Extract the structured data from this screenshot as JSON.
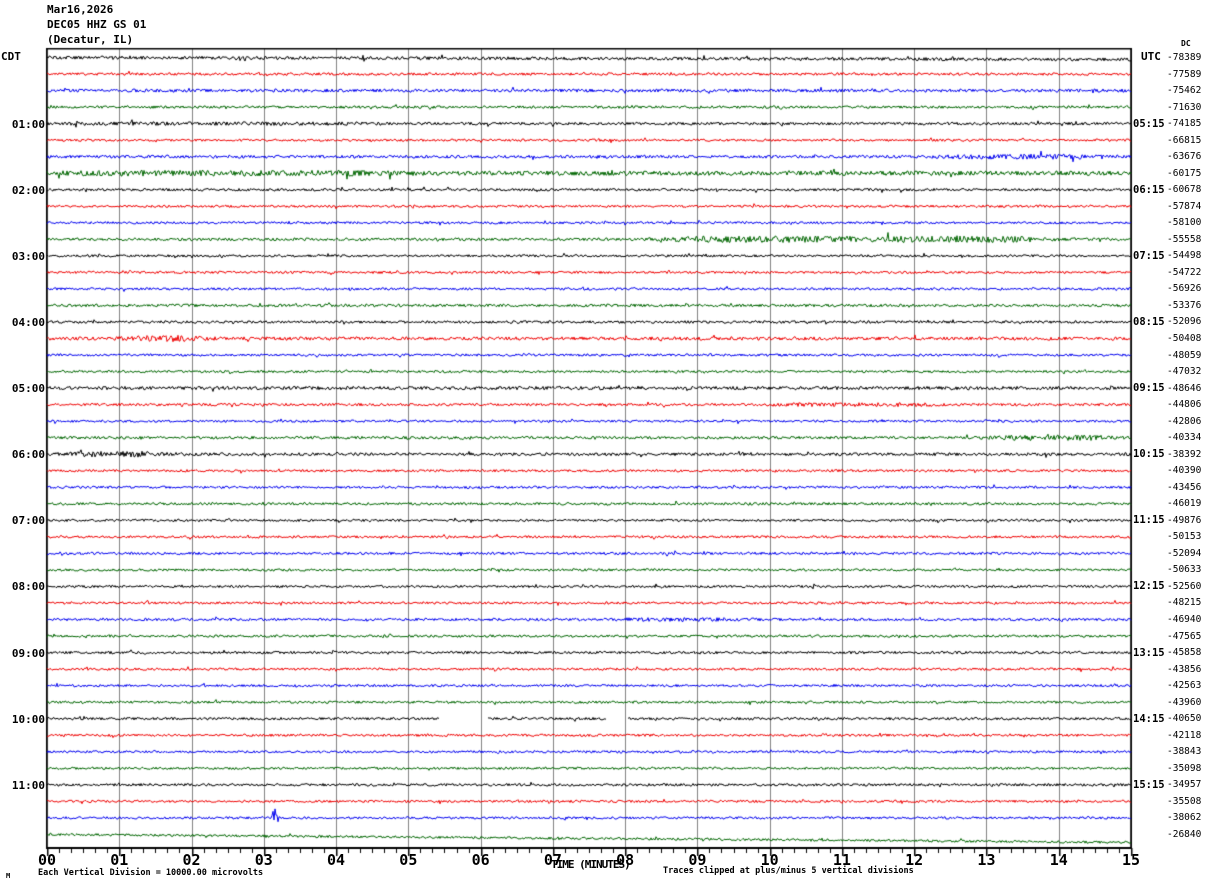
{
  "title": {
    "date": "Mar16,2026",
    "station": "DEC05 HHZ GS 01",
    "location": "(Decatur, IL)"
  },
  "left_axis": {
    "header": "CDT",
    "labels": [
      {
        "row": 4,
        "label": "01:00"
      },
      {
        "row": 8,
        "label": "02:00"
      },
      {
        "row": 12,
        "label": "03:00"
      },
      {
        "row": 16,
        "label": "04:00"
      },
      {
        "row": 20,
        "label": "05:00"
      },
      {
        "row": 24,
        "label": "06:00"
      },
      {
        "row": 28,
        "label": "07:00"
      },
      {
        "row": 32,
        "label": "08:00"
      },
      {
        "row": 36,
        "label": "09:00"
      },
      {
        "row": 40,
        "label": "10:00"
      },
      {
        "row": 44,
        "label": "11:00"
      }
    ]
  },
  "right_axis": {
    "header": "UTC",
    "dc_header": "DC",
    "labels": [
      {
        "row": 4,
        "label": "05:15"
      },
      {
        "row": 8,
        "label": "06:15"
      },
      {
        "row": 12,
        "label": "07:15"
      },
      {
        "row": 16,
        "label": "08:15"
      },
      {
        "row": 20,
        "label": "09:15"
      },
      {
        "row": 24,
        "label": "10:15"
      },
      {
        "row": 28,
        "label": "11:15"
      },
      {
        "row": 32,
        "label": "12:15"
      },
      {
        "row": 36,
        "label": "13:15"
      },
      {
        "row": 40,
        "label": "14:15"
      },
      {
        "row": 44,
        "label": "15:15"
      }
    ]
  },
  "x_axis": {
    "title": "TIME (MINUTES)",
    "labels": [
      "00",
      "01",
      "02",
      "03",
      "04",
      "05",
      "06",
      "07",
      "08",
      "09",
      "10",
      "11",
      "12",
      "13",
      "14",
      "15"
    ]
  },
  "footer": {
    "scale_note": "Each Vertical Division = 10000.00 microvolts",
    "clip_note": "Traces clipped at plus/minus 5 vertical divisions",
    "corner_mark": "M"
  },
  "colors": {
    "trace_black": "#000000",
    "trace_red": "#ee0000",
    "trace_blue": "#0000ee",
    "trace_green": "#006600",
    "grid": "#808080",
    "frame": "#000000",
    "background": "#ffffff"
  },
  "chart_data": {
    "type": "line",
    "subtype": "helicorder-seismogram",
    "minutes_per_line": 15,
    "x_range_minutes": [
      0,
      15
    ],
    "minor_ticks_per_minute": 6,
    "grid": "vertical gray line each minute",
    "legend_position": "none",
    "amplitude_units": "microvolts",
    "vertical_division_microvolts": 10000.0,
    "clip_divisions": 5,
    "traces": [
      {
        "time": "00:00",
        "color": "black",
        "dc": "-78389",
        "amp": 1.6,
        "drift": 2,
        "ev": []
      },
      {
        "time": "00:15",
        "color": "red",
        "dc": "-77589",
        "amp": 1.3,
        "drift": 0,
        "ev": []
      },
      {
        "time": "00:30",
        "color": "blue",
        "dc": "-75462",
        "amp": 1.6,
        "drift": 0,
        "ev": []
      },
      {
        "time": "00:45",
        "color": "green",
        "dc": "-71630",
        "amp": 1.3,
        "drift": 0,
        "ev": []
      },
      {
        "time": "01:00",
        "color": "black",
        "dc": "-74185",
        "amp": 1.4,
        "drift": 0,
        "ev": [
          [
            "burst",
            47,
            400,
            1.8
          ]
        ]
      },
      {
        "time": "01:15",
        "color": "red",
        "dc": "-66815",
        "amp": 1.2,
        "drift": 0,
        "ev": []
      },
      {
        "time": "01:30",
        "color": "blue",
        "dc": "-63676",
        "amp": 1.5,
        "drift": 0,
        "ev": [
          [
            "burst",
            930,
            1131,
            2.6
          ]
        ]
      },
      {
        "time": "01:45",
        "color": "green",
        "dc": "-60175",
        "amp": 2.2,
        "drift": 0,
        "ev": [
          [
            "burst",
            47,
            430,
            2.9
          ]
        ]
      },
      {
        "time": "02:00",
        "color": "black",
        "dc": "-60678",
        "amp": 1.3,
        "drift": 0,
        "ev": []
      },
      {
        "time": "02:15",
        "color": "red",
        "dc": "-57874",
        "amp": 1.2,
        "drift": 0,
        "ev": []
      },
      {
        "time": "02:30",
        "color": "blue",
        "dc": "-58100",
        "amp": 1.2,
        "drift": 0,
        "ev": []
      },
      {
        "time": "02:45",
        "color": "green",
        "dc": "-55558",
        "amp": 1.4,
        "drift": 0,
        "ev": [
          [
            "burst",
            650,
            1060,
            3.2
          ]
        ]
      },
      {
        "time": "03:00",
        "color": "black",
        "dc": "-54498",
        "amp": 1.2,
        "drift": 0,
        "ev": []
      },
      {
        "time": "03:15",
        "color": "red",
        "dc": "-54722",
        "amp": 1.2,
        "drift": 0,
        "ev": []
      },
      {
        "time": "03:30",
        "color": "blue",
        "dc": "-56926",
        "amp": 1.2,
        "drift": 0,
        "ev": []
      },
      {
        "time": "03:45",
        "color": "green",
        "dc": "-53376",
        "amp": 1.4,
        "drift": 0,
        "ev": []
      },
      {
        "time": "04:00",
        "color": "black",
        "dc": "-52096",
        "amp": 1.3,
        "drift": 0,
        "ev": []
      },
      {
        "time": "04:15",
        "color": "red",
        "dc": "-50408",
        "amp": 1.7,
        "drift": 0,
        "ev": [
          [
            "burst",
            115,
            215,
            3.4
          ]
        ]
      },
      {
        "time": "04:30",
        "color": "blue",
        "dc": "-48059",
        "amp": 1.2,
        "drift": 0,
        "ev": []
      },
      {
        "time": "04:45",
        "color": "green",
        "dc": "-47032",
        "amp": 1.2,
        "drift": 0,
        "ev": []
      },
      {
        "time": "05:00",
        "color": "black",
        "dc": "-48646",
        "amp": 1.7,
        "drift": 0,
        "ev": []
      },
      {
        "time": "05:15",
        "color": "red",
        "dc": "-44806",
        "amp": 1.3,
        "drift": 0,
        "ev": [
          [
            "burst",
            750,
            960,
            2.1
          ]
        ]
      },
      {
        "time": "05:30",
        "color": "blue",
        "dc": "-42806",
        "amp": 1.2,
        "drift": 0,
        "ev": []
      },
      {
        "time": "05:45",
        "color": "green",
        "dc": "-40334",
        "amp": 1.4,
        "drift": 0,
        "ev": [
          [
            "burst",
            980,
            1131,
            2.8
          ]
        ]
      },
      {
        "time": "06:00",
        "color": "black",
        "dc": "-38392",
        "amp": 1.5,
        "drift": 0,
        "ev": [
          [
            "burst",
            47,
            185,
            3.0
          ]
        ]
      },
      {
        "time": "06:15",
        "color": "red",
        "dc": "-40390",
        "amp": 1.2,
        "drift": 0,
        "ev": []
      },
      {
        "time": "06:30",
        "color": "blue",
        "dc": "-43456",
        "amp": 1.2,
        "drift": 0,
        "ev": []
      },
      {
        "time": "06:45",
        "color": "green",
        "dc": "-46019",
        "amp": 1.3,
        "drift": 0,
        "ev": []
      },
      {
        "time": "07:00",
        "color": "black",
        "dc": "-49876",
        "amp": 1.2,
        "drift": 0,
        "ev": []
      },
      {
        "time": "07:15",
        "color": "red",
        "dc": "-50153",
        "amp": 1.2,
        "drift": 0,
        "ev": []
      },
      {
        "time": "07:30",
        "color": "blue",
        "dc": "-52094",
        "amp": 1.3,
        "drift": 0,
        "ev": []
      },
      {
        "time": "07:45",
        "color": "green",
        "dc": "-50633",
        "amp": 1.2,
        "drift": 0,
        "ev": []
      },
      {
        "time": "08:00",
        "color": "black",
        "dc": "-52560",
        "amp": 1.2,
        "drift": 0,
        "ev": []
      },
      {
        "time": "08:15",
        "color": "red",
        "dc": "-48215",
        "amp": 1.2,
        "drift": 0,
        "ev": []
      },
      {
        "time": "08:30",
        "color": "blue",
        "dc": "-46940",
        "amp": 1.3,
        "drift": 0,
        "ev": [
          [
            "burst",
            600,
            760,
            2.0
          ]
        ]
      },
      {
        "time": "08:45",
        "color": "green",
        "dc": "-47565",
        "amp": 1.2,
        "drift": 0,
        "ev": []
      },
      {
        "time": "09:00",
        "color": "black",
        "dc": "-45858",
        "amp": 1.3,
        "drift": 0,
        "ev": []
      },
      {
        "time": "09:15",
        "color": "red",
        "dc": "-43856",
        "amp": 1.2,
        "drift": 0,
        "ev": []
      },
      {
        "time": "09:30",
        "color": "blue",
        "dc": "-42563",
        "amp": 1.2,
        "drift": 0,
        "ev": []
      },
      {
        "time": "09:45",
        "color": "green",
        "dc": "-43960",
        "amp": 1.2,
        "drift": 0,
        "ev": []
      },
      {
        "time": "10:00",
        "color": "black",
        "dc": "-40650",
        "amp": 1.3,
        "drift": 0,
        "ev": [
          [
            "gap",
            440,
            487
          ],
          [
            "gap",
            607,
            627
          ]
        ]
      },
      {
        "time": "10:15",
        "color": "red",
        "dc": "-42118",
        "amp": 1.2,
        "drift": 0,
        "ev": []
      },
      {
        "time": "10:30",
        "color": "blue",
        "dc": "-38843",
        "amp": 1.2,
        "drift": 0,
        "ev": []
      },
      {
        "time": "10:45",
        "color": "green",
        "dc": "-35098",
        "amp": 1.2,
        "drift": 0,
        "ev": []
      },
      {
        "time": "11:00",
        "color": "black",
        "dc": "-34957",
        "amp": 1.3,
        "drift": 0,
        "ev": []
      },
      {
        "time": "11:15",
        "color": "red",
        "dc": "-35508",
        "amp": 1.2,
        "drift": 0,
        "ev": []
      },
      {
        "time": "11:30",
        "color": "blue",
        "dc": "-38062",
        "amp": 1.2,
        "drift": 0,
        "ev": [
          [
            "spike",
            275,
            5
          ]
        ]
      },
      {
        "time": "11:45",
        "color": "green",
        "dc": "-26840",
        "amp": 1.2,
        "drift": 8,
        "ev": []
      }
    ]
  }
}
